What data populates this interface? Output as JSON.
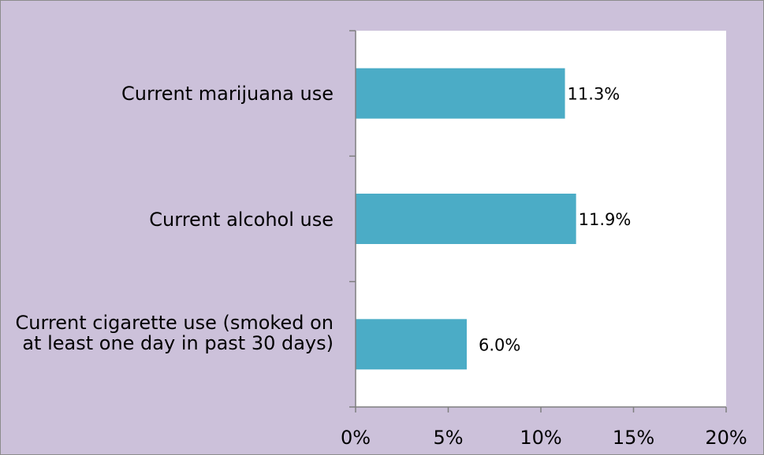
{
  "chart_data": {
    "type": "bar",
    "orientation": "horizontal",
    "categories": [
      "Current marijuana use",
      "Current alcohol use",
      "Current cigarette use (smoked on at least one day in past 30 days)"
    ],
    "values": [
      11.3,
      11.9,
      6.0
    ],
    "data_labels": [
      "11.3%",
      "11.9%",
      "6.0%"
    ],
    "x_ticks": [
      "0%",
      "5%",
      "10%",
      "15%",
      "20%"
    ],
    "xlim": [
      0,
      20
    ],
    "grid": false,
    "legend": "none",
    "colors": {
      "bar": "#4bacc6",
      "background": "#ccc1da",
      "plot_area": "#ffffff",
      "axis": "#7f7f7f"
    }
  }
}
